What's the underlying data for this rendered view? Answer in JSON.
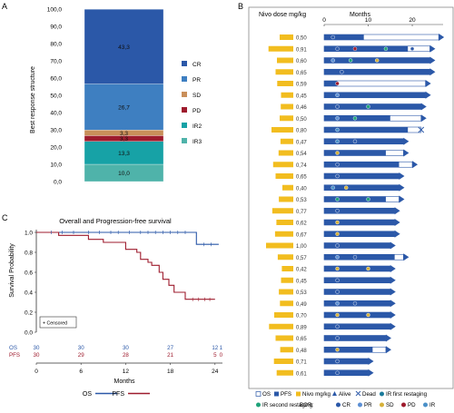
{
  "panel_letters": {
    "a": "A",
    "b": "B",
    "c": "C"
  },
  "chart_data": [
    {
      "panel": "A",
      "type": "bar",
      "layout": "stacked-100",
      "ylabel": "Best response structure",
      "ylim": [
        0,
        100
      ],
      "yticks": [
        "0,0",
        "10,0",
        "20,0",
        "30,0",
        "40,0",
        "50,0",
        "60,0",
        "70,0",
        "80,0",
        "90,0",
        "100,0"
      ],
      "series": [
        {
          "name": "CR",
          "value": 43.3,
          "label": "43,3",
          "color": "#2b58a8"
        },
        {
          "name": "PR",
          "value": 26.7,
          "label": "26,7",
          "color": "#3e7fc1"
        },
        {
          "name": "SD",
          "value": 3.3,
          "label": "3,3",
          "color": "#c98f5a"
        },
        {
          "name": "PD",
          "value": 3.3,
          "label": "3,3",
          "color": "#9e1b2d"
        },
        {
          "name": "IR2",
          "value": 13.3,
          "label": "13,3",
          "color": "#17a2a6"
        },
        {
          "name": "IR3",
          "value": 10.0,
          "label": "10,0",
          "color": "#4fb3aa"
        }
      ]
    },
    {
      "panel": "B",
      "type": "bar",
      "layout": "swimmer",
      "dose_title": "Nivo dose mg/kg",
      "xlabel": "Months",
      "xlim": [
        0,
        27
      ],
      "xticks": [
        "0",
        "10",
        "20"
      ],
      "patients": [
        {
          "dose": 0.5,
          "dose_label": "0,50",
          "os": 26.0,
          "pfs": 9.0,
          "alive": true,
          "events": [
            {
              "t": 2,
              "c": "cr"
            }
          ]
        },
        {
          "dose": 0.91,
          "dose_label": "0,91",
          "os": 24.0,
          "pfs": 19.0,
          "alive": true,
          "events": [
            {
              "t": 3,
              "c": "cr"
            },
            {
              "t": 7,
              "c": "pd"
            },
            {
              "t": 14,
              "c": "ir2"
            },
            {
              "t": 20,
              "c": "cr"
            }
          ]
        },
        {
          "dose": 0.6,
          "dose_label": "0,60",
          "os": 24.0,
          "pfs": 24.0,
          "alive": true,
          "events": [
            {
              "t": 2,
              "c": "pr"
            },
            {
              "t": 6,
              "c": "ir2"
            },
            {
              "t": 12,
              "c": "sd"
            }
          ]
        },
        {
          "dose": 0.65,
          "dose_label": "0,65",
          "os": 24.0,
          "pfs": 24.0,
          "alive": true,
          "events": [
            {
              "t": 4,
              "c": "cr"
            }
          ]
        },
        {
          "dose": 0.59,
          "dose_label": "0,59",
          "os": 23.0,
          "pfs": 3.0,
          "alive": true,
          "events": [
            {
              "t": 3,
              "c": "pd"
            }
          ]
        },
        {
          "dose": 0.45,
          "dose_label": "0,45",
          "os": 23.0,
          "pfs": 23.0,
          "alive": true,
          "events": [
            {
              "t": 3,
              "c": "pr"
            }
          ]
        },
        {
          "dose": 0.46,
          "dose_label": "0,46",
          "os": 22.0,
          "pfs": 22.0,
          "alive": true,
          "events": [
            {
              "t": 3,
              "c": "cr"
            },
            {
              "t": 10,
              "c": "ir2"
            }
          ]
        },
        {
          "dose": 0.5,
          "dose_label": "0,50",
          "os": 22.0,
          "pfs": 15.0,
          "alive": true,
          "events": [
            {
              "t": 3,
              "c": "pr"
            },
            {
              "t": 7,
              "c": "ir2"
            }
          ]
        },
        {
          "dose": 0.8,
          "dose_label": "0,80",
          "os": 22.0,
          "pfs": 19.0,
          "alive": false,
          "events": [
            {
              "t": 3,
              "c": "ir"
            }
          ]
        },
        {
          "dose": 0.47,
          "dose_label": "0,47",
          "os": 18.0,
          "pfs": 18.0,
          "alive": true,
          "events": [
            {
              "t": 3,
              "c": "ir"
            },
            {
              "t": 7,
              "c": "cr"
            }
          ]
        },
        {
          "dose": 0.54,
          "dose_label": "0,54",
          "os": 18.0,
          "pfs": 14.0,
          "alive": true,
          "events": [
            {
              "t": 3,
              "c": "sd"
            }
          ]
        },
        {
          "dose": 0.74,
          "dose_label": "0,74",
          "os": 20.0,
          "pfs": 17.0,
          "alive": true,
          "events": [
            {
              "t": 3,
              "c": "cr"
            }
          ]
        },
        {
          "dose": 0.65,
          "dose_label": "0,65",
          "os": 17.0,
          "pfs": 17.0,
          "alive": true,
          "events": [
            {
              "t": 3,
              "c": "cr"
            }
          ]
        },
        {
          "dose": 0.4,
          "dose_label": "0,40",
          "os": 17.0,
          "pfs": 17.0,
          "alive": true,
          "events": [
            {
              "t": 2,
              "c": "ir"
            },
            {
              "t": 5,
              "c": "sd"
            }
          ]
        },
        {
          "dose": 0.53,
          "dose_label": "0,53",
          "os": 17.0,
          "pfs": 14.0,
          "alive": true,
          "events": [
            {
              "t": 3,
              "c": "ir2"
            },
            {
              "t": 10,
              "c": "ir2"
            }
          ]
        },
        {
          "dose": 0.77,
          "dose_label": "0,77",
          "os": 16.0,
          "pfs": 16.0,
          "alive": true,
          "events": [
            {
              "t": 3,
              "c": "cr"
            }
          ]
        },
        {
          "dose": 0.62,
          "dose_label": "0,62",
          "os": 16.0,
          "pfs": 16.0,
          "alive": true,
          "events": [
            {
              "t": 3,
              "c": "sd"
            }
          ]
        },
        {
          "dose": 0.67,
          "dose_label": "0,67",
          "os": 16.0,
          "pfs": 16.0,
          "alive": true,
          "events": [
            {
              "t": 3,
              "c": "sd"
            }
          ]
        },
        {
          "dose": 1.0,
          "dose_label": "1,00",
          "os": 15.0,
          "pfs": 15.0,
          "alive": true,
          "events": [
            {
              "t": 3,
              "c": "cr"
            }
          ]
        },
        {
          "dose": 0.57,
          "dose_label": "0,57",
          "os": 18.0,
          "pfs": 16.0,
          "alive": true,
          "events": [
            {
              "t": 3,
              "c": "pr"
            },
            {
              "t": 7,
              "c": "cr"
            }
          ]
        },
        {
          "dose": 0.42,
          "dose_label": "0,42",
          "os": 15.0,
          "pfs": 15.0,
          "alive": true,
          "events": [
            {
              "t": 3,
              "c": "sd"
            },
            {
              "t": 10,
              "c": "sd"
            }
          ]
        },
        {
          "dose": 0.45,
          "dose_label": "0,45",
          "os": 15.0,
          "pfs": 15.0,
          "alive": true,
          "events": [
            {
              "t": 3,
              "c": "cr"
            }
          ]
        },
        {
          "dose": 0.53,
          "dose_label": "0,53",
          "os": 15.0,
          "pfs": 15.0,
          "alive": true,
          "events": [
            {
              "t": 3,
              "c": "cr"
            }
          ]
        },
        {
          "dose": 0.49,
          "dose_label": "0,49",
          "os": 15.0,
          "pfs": 15.0,
          "alive": true,
          "events": [
            {
              "t": 3,
              "c": "pr"
            },
            {
              "t": 7,
              "c": "cr"
            }
          ]
        },
        {
          "dose": 0.7,
          "dose_label": "0,70",
          "os": 15.0,
          "pfs": 15.0,
          "alive": true,
          "events": [
            {
              "t": 3,
              "c": "sd"
            },
            {
              "t": 10,
              "c": "sd"
            }
          ]
        },
        {
          "dose": 0.89,
          "dose_label": "0,89",
          "os": 15.0,
          "pfs": 15.0,
          "alive": true,
          "events": [
            {
              "t": 3,
              "c": "cr"
            }
          ]
        },
        {
          "dose": 0.65,
          "dose_label": "0,65",
          "os": 14.0,
          "pfs": 14.0,
          "alive": true,
          "events": [
            {
              "t": 3,
              "c": "cr"
            }
          ]
        },
        {
          "dose": 0.48,
          "dose_label": "0,48",
          "os": 14.0,
          "pfs": 11.0,
          "alive": true,
          "events": [
            {
              "t": 3,
              "c": "sd"
            }
          ]
        },
        {
          "dose": 0.71,
          "dose_label": "0,71",
          "os": 10.0,
          "pfs": 10.0,
          "alive": true,
          "events": [
            {
              "t": 3,
              "c": "cr"
            }
          ]
        },
        {
          "dose": 0.61,
          "dose_label": "0,61",
          "os": 10.0,
          "pfs": 10.0,
          "alive": true,
          "events": [
            {
              "t": 3,
              "c": "cr"
            }
          ]
        }
      ],
      "legend": [
        {
          "key": "os",
          "label": "OS"
        },
        {
          "key": "pfs",
          "label": "PFS"
        },
        {
          "key": "dose",
          "label": "Nivo mg/kg"
        },
        {
          "key": "alive",
          "label": "Alive"
        },
        {
          "key": "dead",
          "label": "Dead"
        },
        {
          "key": "ir1",
          "label": "IR first restaging"
        },
        {
          "key": "ir2",
          "label": "IR second restaging"
        },
        {
          "key": "bor",
          "label": "BOR:"
        },
        {
          "key": "cr",
          "label": "CR"
        },
        {
          "key": "pr",
          "label": "PR"
        },
        {
          "key": "sd",
          "label": "SD"
        },
        {
          "key": "pd",
          "label": "PD"
        },
        {
          "key": "ir",
          "label": "IR"
        }
      ],
      "colors": {
        "os": "#ffffff",
        "pfs": "#2b58a8",
        "dose": "#f2bd1f",
        "cr": "#2b58a8",
        "pr": "#5b8fd4",
        "sd": "#d6b13a",
        "pd": "#9e1b2d",
        "ir": "#4a90c8",
        "ir2": "#1fa37a",
        "ir1": "#1a7a9a"
      }
    },
    {
      "panel": "C",
      "type": "line",
      "layout": "kaplan-meier",
      "title": "Overall and Progression-free survival",
      "xlabel": "Months",
      "ylabel": "Survival Probability",
      "xlim": [
        0,
        25
      ],
      "ylim": [
        0,
        1
      ],
      "xticks": [
        "0",
        "6",
        "12",
        "18",
        "24"
      ],
      "yticks": [
        "0.0",
        "0.2",
        "0.4",
        "0.6",
        "0.8",
        "1.0"
      ],
      "censored_label": "+ Censored",
      "series": [
        {
          "name": "OS",
          "color": "#2b58a8",
          "steps": [
            [
              0,
              1.0
            ],
            [
              21.5,
              1.0
            ],
            [
              21.5,
              0.88
            ],
            [
              24.5,
              0.88
            ]
          ]
        },
        {
          "name": "PFS",
          "color": "#9e1b2d",
          "steps": [
            [
              0,
              1.0
            ],
            [
              3,
              1.0
            ],
            [
              3,
              0.97
            ],
            [
              7,
              0.97
            ],
            [
              7,
              0.93
            ],
            [
              9,
              0.93
            ],
            [
              9,
              0.9
            ],
            [
              12,
              0.9
            ],
            [
              12,
              0.83
            ],
            [
              13.5,
              0.83
            ],
            [
              13.5,
              0.8
            ],
            [
              14,
              0.8
            ],
            [
              14,
              0.73
            ],
            [
              15,
              0.73
            ],
            [
              15,
              0.7
            ],
            [
              15.5,
              0.7
            ],
            [
              15.5,
              0.67
            ],
            [
              16.5,
              0.67
            ],
            [
              16.5,
              0.6
            ],
            [
              17,
              0.6
            ],
            [
              17,
              0.53
            ],
            [
              17.8,
              0.53
            ],
            [
              17.8,
              0.47
            ],
            [
              18.5,
              0.47
            ],
            [
              18.5,
              0.4
            ],
            [
              20,
              0.4
            ],
            [
              20,
              0.33
            ],
            [
              24,
              0.33
            ]
          ]
        }
      ],
      "risk_table": {
        "rows": [
          {
            "name": "OS",
            "values": [
              "30",
              "30",
              "30",
              "27",
              "12",
              "1"
            ]
          },
          {
            "name": "PFS",
            "values": [
              "30",
              "29",
              "28",
              "21",
              "5",
              "0"
            ]
          }
        ],
        "at": [
          0,
          6,
          12,
          18,
          24,
          24.8
        ]
      }
    }
  ]
}
